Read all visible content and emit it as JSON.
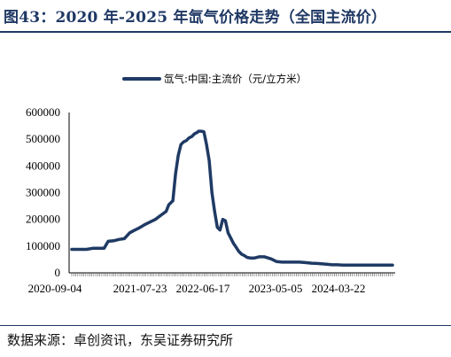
{
  "title": "图43：2020 年-2025 年氙气价格走势（全国主流价）",
  "source": "数据来源：卓创资讯，东吴证券研究所",
  "colors": {
    "line": "#1f3a64",
    "title": "#1f3864"
  },
  "chart_data": {
    "type": "line",
    "title": "",
    "xlabel": "",
    "ylabel": "",
    "ylim": [
      0,
      600000
    ],
    "yticks": [
      "600000",
      "500000",
      "400000",
      "300000",
      "200000",
      "100000",
      "0"
    ],
    "xticks": [
      "2020-09-04",
      "2021-07-23",
      "2022-06-17",
      "2023-05-05",
      "2024-03-22"
    ],
    "legend": "top-center",
    "grid": false,
    "series": [
      {
        "name": "氙气:中国:主流价（元/立方米）",
        "x": [
          "2020-09-04",
          "2020-11-20",
          "2020-12-25",
          "2021-01-22",
          "2021-02-19",
          "2021-03-12",
          "2021-04-09",
          "2021-05-07",
          "2021-06-04",
          "2021-07-02",
          "2021-07-23",
          "2021-08-20",
          "2021-09-17",
          "2021-10-15",
          "2021-11-12",
          "2021-12-10",
          "2022-01-07",
          "2022-01-21",
          "2022-02-11",
          "2022-02-25",
          "2022-03-11",
          "2022-03-25",
          "2022-04-08",
          "2022-04-22",
          "2022-05-06",
          "2022-05-20",
          "2022-06-03",
          "2022-06-17",
          "2022-06-24",
          "2022-07-08",
          "2022-07-22",
          "2022-08-05",
          "2022-08-19",
          "2022-09-02",
          "2022-09-16",
          "2022-09-30",
          "2022-10-14",
          "2022-10-28",
          "2022-11-11",
          "2022-11-25",
          "2022-12-09",
          "2022-12-23",
          "2023-01-06",
          "2023-01-20",
          "2023-02-03",
          "2023-02-17",
          "2023-03-03",
          "2023-03-17",
          "2023-03-31",
          "2023-04-14",
          "2023-05-05",
          "2023-06-02",
          "2023-07-07",
          "2023-08-04",
          "2023-09-01",
          "2023-09-29",
          "2023-11-03",
          "2023-12-01",
          "2024-01-05",
          "2024-02-02",
          "2024-03-01",
          "2024-03-22",
          "2024-04-19",
          "2024-05-17",
          "2024-06-14",
          "2024-07-12",
          "2024-08-09",
          "2024-09-06",
          "2024-10-11",
          "2024-11-08",
          "2024-12-06",
          "2025-01-03",
          "2025-01-31",
          "2025-02-28",
          "2025-03-28"
        ],
        "values": [
          88000,
          88000,
          92000,
          92000,
          92000,
          118000,
          120000,
          125000,
          128000,
          150000,
          158000,
          168000,
          180000,
          190000,
          200000,
          215000,
          230000,
          255000,
          270000,
          370000,
          440000,
          480000,
          490000,
          495000,
          505000,
          510000,
          520000,
          525000,
          530000,
          530000,
          528000,
          480000,
          420000,
          300000,
          230000,
          170000,
          160000,
          200000,
          195000,
          150000,
          130000,
          110000,
          95000,
          80000,
          70000,
          65000,
          58000,
          56000,
          55000,
          56000,
          60000,
          60000,
          52000,
          42000,
          40000,
          40000,
          40000,
          40000,
          38000,
          36000,
          35000,
          34000,
          32000,
          30000,
          30000,
          29000,
          29000,
          29000,
          29000,
          29000,
          29000,
          29000,
          29000,
          29000,
          29000
        ]
      }
    ]
  }
}
